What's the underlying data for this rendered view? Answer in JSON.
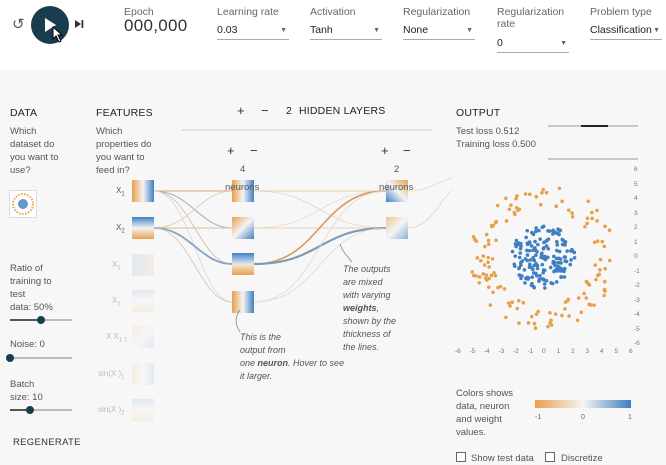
{
  "controls": {
    "epoch_label": "Epoch",
    "epoch_value": "000,000",
    "learning_rate_label": "Learning rate",
    "learning_rate_value": "0.03",
    "activation_label": "Activation",
    "activation_value": "Tanh",
    "regularization_label": "Regularization",
    "regularization_value": "None",
    "reg_rate_label_1": "Regularization",
    "reg_rate_label_2": "rate",
    "reg_rate_value": "0",
    "problem_type_label": "Problem type",
    "problem_type_value": "Classification"
  },
  "data_panel": {
    "title": "DATA",
    "question": [
      "Which",
      "dataset do",
      "you want to",
      "use?"
    ],
    "ratio_label": [
      "Ratio of",
      "training to",
      "test"
    ],
    "ratio_value_text": "data:  50%",
    "ratio_fraction": 0.5,
    "noise_label": "Noise:  0",
    "noise_fraction": 0.0,
    "batch_label": "Batch",
    "batch_value_text": "size:  10",
    "batch_fraction": 0.33,
    "regenerate": "REGENERATE"
  },
  "features_panel": {
    "title": "FEATURES",
    "question": [
      "Which",
      "properties do",
      "you want to",
      "feed in?"
    ],
    "features": [
      "X",
      "X",
      "X",
      "X",
      "X X",
      "sin(X )",
      "sin(X )"
    ],
    "subscripts": [
      "1",
      "2",
      "1",
      "2",
      "1 2",
      "1",
      "2"
    ]
  },
  "hidden": {
    "plus": "+",
    "minus": "−",
    "count": "2",
    "title": "HIDDEN LAYERS",
    "layer1_count": "4",
    "layer1_unit": "neurons",
    "layer2_count": "2",
    "layer2_unit": "neurons",
    "note_neuron": [
      "This is the",
      "output from",
      "one",
      "neuron",
      ". Hover to see",
      "it larger."
    ],
    "note_weights": [
      "The outputs",
      "are mixed",
      "with varying",
      "weights",
      ",",
      "shown by the",
      "thickness of",
      "the lines."
    ]
  },
  "output": {
    "title": "OUTPUT",
    "test_loss": "Test loss 0.512",
    "training_loss": "Training loss 0.500",
    "y_ticks": [
      "6",
      "5",
      "4",
      "3",
      "2",
      "1",
      "0",
      "-1",
      "-2",
      "-3",
      "-4",
      "-5",
      "-6"
    ],
    "x_ticks": [
      "-6",
      "-5",
      "-4",
      "-3",
      "-2",
      "-1",
      "0",
      "1",
      "2",
      "3",
      "4",
      "5",
      "6"
    ],
    "legend_text": [
      "Colors shows",
      "data, neuron",
      "and weight",
      "values."
    ],
    "legend_ticks": [
      "-1",
      "0",
      "1"
    ],
    "show_test_data": "Show test data",
    "discretize": "Discretize",
    "colors": {
      "orange": "#e8a04b",
      "blue": "#3e7fc1"
    }
  }
}
